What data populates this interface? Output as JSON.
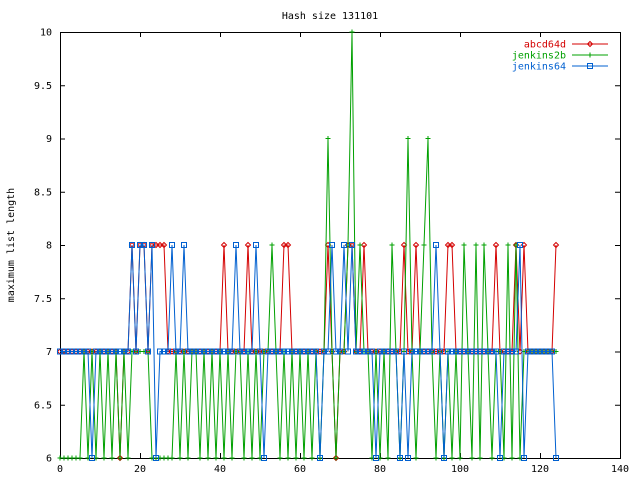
{
  "chart_data": {
    "type": "line",
    "title": "Hash size 131101",
    "xlabel": "",
    "ylabel": "maximum list length",
    "xlim": [
      0,
      140
    ],
    "ylim": [
      6,
      10
    ],
    "xticks": [
      0,
      20,
      40,
      60,
      80,
      100,
      120,
      140
    ],
    "yticks": [
      6,
      6.5,
      7,
      7.5,
      8,
      8.5,
      9,
      9.5,
      10
    ],
    "grid": false,
    "legend_position": "top-right",
    "series": [
      {
        "name": "abcd64d",
        "color": "#d40000",
        "marker": "diamond",
        "x": [
          0,
          1,
          2,
          3,
          4,
          5,
          6,
          7,
          8,
          9,
          10,
          11,
          12,
          13,
          14,
          15,
          16,
          17,
          18,
          19,
          20,
          21,
          22,
          23,
          24,
          25,
          26,
          27,
          28,
          29,
          30,
          31,
          32,
          33,
          34,
          35,
          36,
          37,
          38,
          39,
          40,
          41,
          42,
          43,
          44,
          45,
          46,
          47,
          48,
          49,
          50,
          51,
          52,
          53,
          54,
          55,
          56,
          57,
          58,
          59,
          60,
          61,
          62,
          63,
          64,
          65,
          66,
          67,
          68,
          69,
          70,
          71,
          72,
          73,
          74,
          75,
          76,
          77,
          78,
          79,
          80,
          81,
          82,
          83,
          84,
          85,
          86,
          87,
          88,
          89,
          90,
          91,
          92,
          93,
          94,
          95,
          96,
          97,
          98,
          99,
          100,
          101,
          102,
          103,
          104,
          105,
          106,
          107,
          108,
          109,
          110,
          111,
          112,
          113,
          114,
          115,
          116,
          117,
          118,
          119,
          120,
          121,
          122,
          123,
          124
        ],
        "y": [
          7,
          7,
          7,
          7,
          7,
          7,
          7,
          7,
          7,
          7,
          7,
          7,
          7,
          7,
          7,
          6,
          7,
          7,
          8,
          7,
          8,
          8,
          7,
          8,
          8,
          8,
          8,
          7,
          7,
          7,
          7,
          7,
          7,
          7,
          7,
          7,
          7,
          7,
          7,
          7,
          7,
          8,
          7,
          7,
          7,
          7,
          7,
          8,
          7,
          7,
          7,
          7,
          7,
          7,
          7,
          7,
          8,
          8,
          7,
          7,
          7,
          7,
          7,
          7,
          7,
          7,
          7,
          8,
          7,
          6,
          7,
          7,
          8,
          8,
          7,
          7,
          8,
          7,
          7,
          7,
          7,
          7,
          7,
          7,
          7,
          7,
          8,
          7,
          7,
          8,
          7,
          7,
          7,
          7,
          7,
          7,
          7,
          8,
          8,
          7,
          7,
          7,
          7,
          7,
          7,
          7,
          7,
          7,
          7,
          8,
          7,
          7,
          7,
          7,
          8,
          7,
          8,
          7,
          7,
          7,
          7,
          7,
          7,
          7,
          8
        ]
      },
      {
        "name": "jenkins2b",
        "color": "#00a000",
        "marker": "plus",
        "x": [
          0,
          1,
          2,
          3,
          4,
          5,
          6,
          7,
          8,
          9,
          10,
          11,
          12,
          13,
          14,
          15,
          16,
          17,
          18,
          19,
          20,
          21,
          22,
          23,
          24,
          25,
          26,
          27,
          28,
          29,
          30,
          31,
          32,
          33,
          34,
          35,
          36,
          37,
          38,
          39,
          40,
          41,
          42,
          43,
          44,
          45,
          46,
          47,
          48,
          49,
          50,
          51,
          52,
          53,
          54,
          55,
          56,
          57,
          58,
          59,
          60,
          61,
          62,
          63,
          64,
          65,
          66,
          67,
          68,
          69,
          70,
          71,
          72,
          73,
          74,
          75,
          76,
          77,
          78,
          79,
          80,
          81,
          82,
          83,
          84,
          85,
          86,
          87,
          88,
          89,
          90,
          91,
          92,
          93,
          94,
          95,
          96,
          97,
          98,
          99,
          100,
          101,
          102,
          103,
          104,
          105,
          106,
          107,
          108,
          109,
          110,
          111,
          112,
          113,
          114,
          115,
          116,
          117,
          118,
          119,
          120,
          121,
          122,
          123,
          124
        ],
        "y": [
          6,
          6,
          6,
          6,
          6,
          6,
          7,
          6,
          7,
          6,
          7,
          6,
          7,
          6,
          7,
          6,
          7,
          6,
          7,
          7,
          7,
          7,
          7,
          6,
          6,
          6,
          6,
          6,
          6,
          7,
          6,
          7,
          6,
          7,
          7,
          6,
          7,
          6,
          7,
          6,
          7,
          6,
          7,
          6,
          7,
          7,
          6,
          7,
          6,
          7,
          6,
          7,
          7,
          8,
          7,
          6,
          7,
          6,
          7,
          6,
          7,
          6,
          7,
          6,
          7,
          6,
          7,
          9,
          7,
          6,
          7,
          7,
          8,
          10,
          7,
          8,
          7,
          7,
          6,
          7,
          6,
          7,
          6,
          8,
          7,
          6,
          7,
          9,
          7,
          6,
          7,
          8,
          9,
          7,
          6,
          7,
          6,
          7,
          6,
          7,
          6,
          8,
          7,
          6,
          8,
          6,
          8,
          7,
          6,
          7,
          7,
          6,
          8,
          6,
          8,
          6,
          7,
          7,
          7,
          7,
          7,
          7,
          7,
          7,
          7
        ]
      },
      {
        "name": "jenkins64",
        "color": "#0060d0",
        "marker": "square",
        "x": [
          0,
          1,
          2,
          3,
          4,
          5,
          6,
          7,
          8,
          9,
          10,
          11,
          12,
          13,
          14,
          15,
          16,
          17,
          18,
          19,
          20,
          21,
          22,
          23,
          24,
          25,
          26,
          27,
          28,
          29,
          30,
          31,
          32,
          33,
          34,
          35,
          36,
          37,
          38,
          39,
          40,
          41,
          42,
          43,
          44,
          45,
          46,
          47,
          48,
          49,
          50,
          51,
          52,
          53,
          54,
          55,
          56,
          57,
          58,
          59,
          60,
          61,
          62,
          63,
          64,
          65,
          66,
          67,
          68,
          69,
          70,
          71,
          72,
          73,
          74,
          75,
          76,
          77,
          78,
          79,
          80,
          81,
          82,
          83,
          84,
          85,
          86,
          87,
          88,
          89,
          90,
          91,
          92,
          93,
          94,
          95,
          96,
          97,
          98,
          99,
          100,
          101,
          102,
          103,
          104,
          105,
          106,
          107,
          108,
          109,
          110,
          111,
          112,
          113,
          114,
          115,
          116,
          117,
          118,
          119,
          120,
          121,
          122,
          123,
          124
        ],
        "y": [
          7,
          7,
          7,
          7,
          7,
          7,
          7,
          7,
          6,
          7,
          7,
          7,
          7,
          7,
          7,
          7,
          7,
          7,
          8,
          7,
          8,
          8,
          7,
          8,
          6,
          7,
          7,
          7,
          8,
          7,
          7,
          8,
          7,
          7,
          7,
          7,
          7,
          7,
          7,
          7,
          7,
          7,
          7,
          7,
          8,
          7,
          7,
          7,
          7,
          8,
          7,
          6,
          7,
          7,
          7,
          7,
          7,
          7,
          7,
          7,
          7,
          7,
          7,
          7,
          7,
          6,
          7,
          7,
          8,
          7,
          7,
          8,
          7,
          8,
          7,
          7,
          7,
          7,
          7,
          6,
          7,
          7,
          7,
          7,
          7,
          6,
          7,
          6,
          7,
          7,
          7,
          7,
          7,
          7,
          8,
          7,
          6,
          7,
          7,
          7,
          7,
          7,
          7,
          7,
          7,
          7,
          7,
          7,
          7,
          7,
          6,
          7,
          7,
          7,
          7,
          8,
          6,
          7,
          7,
          7,
          7,
          7,
          7,
          7,
          6
        ]
      }
    ]
  }
}
